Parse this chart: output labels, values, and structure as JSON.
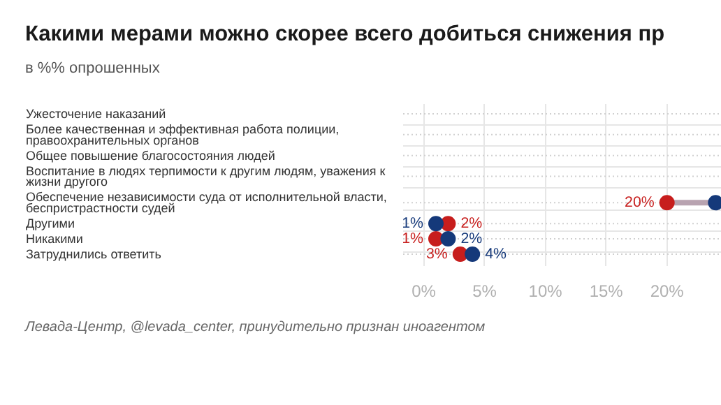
{
  "chart_data": {
    "type": "scatter",
    "orientation": "horizontal",
    "title": "Какими мерами можно скорее всего добиться снижения пр",
    "subtitle": "в %% опрошенных",
    "categories": [
      "Ужесточение наказаний",
      "Более качественная и эффективная работа полиции, правоохранительных органов",
      "Общее повышение благосостояния людей",
      "Воспитание в людях терпимости к другим людям, уважения к жизни другого",
      "Обеспечение независимости суда от исполнительной власти, беспристрастности судей",
      "Другими",
      "Никакими",
      "Затруднились ответить"
    ],
    "series": [
      {
        "color": "#c71e1d",
        "values": [
          null,
          null,
          null,
          null,
          20,
          2,
          1,
          3
        ],
        "value_labels": [
          null,
          null,
          null,
          null,
          "20%",
          "2%",
          "1%",
          "3%"
        ]
      },
      {
        "color": "#15397a",
        "values": [
          null,
          null,
          null,
          null,
          24,
          1,
          2,
          4
        ],
        "value_labels": [
          null,
          null,
          null,
          null,
          null,
          "1%",
          "2%",
          "4%"
        ]
      }
    ],
    "xlim": [
      -1.7,
      24.5
    ],
    "xticks": [
      {
        "value": 0,
        "label": "0%"
      },
      {
        "value": 5,
        "label": "5%"
      },
      {
        "value": 10,
        "label": "10%"
      },
      {
        "value": 15,
        "label": "15%"
      },
      {
        "value": 20,
        "label": "20%"
      }
    ],
    "grid": true,
    "marker": "circle",
    "annotations": [
      "Левада-Центр, @levada_center, принудительно признан иноагентом"
    ]
  }
}
